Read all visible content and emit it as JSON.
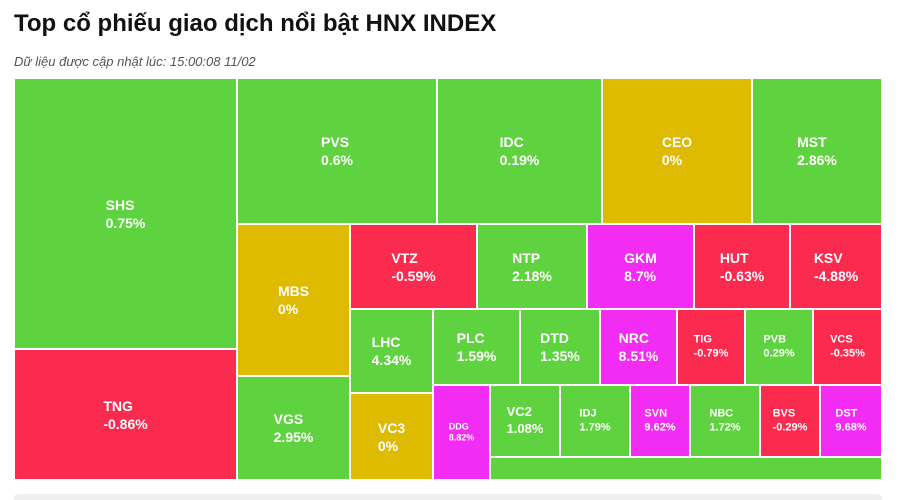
{
  "header": {
    "title": "Top cổ phiếu giao dịch nổi bật HNX INDEX",
    "updated_label": "Dữ liệu được cập nhật lúc:",
    "updated_time": "15:00:08 11/02"
  },
  "colors": {
    "up": "#5fd33f",
    "down": "#fa2b4f",
    "flat": "#deba00",
    "ceiling": "#f32cf3"
  },
  "chart_data": {
    "type": "treemap",
    "title": "Top cổ phiếu giao dịch nổi bật HNX INDEX",
    "items": [
      {
        "name": "SHS",
        "change": "0.75%",
        "status": "up"
      },
      {
        "name": "TNG",
        "change": "-0.86%",
        "status": "down"
      },
      {
        "name": "PVS",
        "change": "0.6%",
        "status": "up"
      },
      {
        "name": "IDC",
        "change": "0.19%",
        "status": "up"
      },
      {
        "name": "CEO",
        "change": "0%",
        "status": "flat"
      },
      {
        "name": "MST",
        "change": "2.86%",
        "status": "up"
      },
      {
        "name": "MBS",
        "change": "0%",
        "status": "flat"
      },
      {
        "name": "VGS",
        "change": "2.95%",
        "status": "up"
      },
      {
        "name": "VTZ",
        "change": "-0.59%",
        "status": "down"
      },
      {
        "name": "NTP",
        "change": "2.18%",
        "status": "up"
      },
      {
        "name": "GKM",
        "change": "8.7%",
        "status": "ceiling"
      },
      {
        "name": "HUT",
        "change": "-0.63%",
        "status": "down"
      },
      {
        "name": "KSV",
        "change": "-4.88%",
        "status": "down"
      },
      {
        "name": "LHC",
        "change": "4.34%",
        "status": "up"
      },
      {
        "name": "PLC",
        "change": "1.59%",
        "status": "up"
      },
      {
        "name": "DTD",
        "change": "1.35%",
        "status": "up"
      },
      {
        "name": "NRC",
        "change": "8.51%",
        "status": "ceiling"
      },
      {
        "name": "TIG",
        "change": "-0.79%",
        "status": "down"
      },
      {
        "name": "PVB",
        "change": "0.29%",
        "status": "up"
      },
      {
        "name": "VCS",
        "change": "-0.35%",
        "status": "down"
      },
      {
        "name": "VC3",
        "change": "0%",
        "status": "flat"
      },
      {
        "name": "DDG",
        "change": "8.82%",
        "status": "ceiling"
      },
      {
        "name": "VC2",
        "change": "1.08%",
        "status": "up"
      },
      {
        "name": "IDJ",
        "change": "1.79%",
        "status": "up"
      },
      {
        "name": "SVN",
        "change": "9.62%",
        "status": "ceiling"
      },
      {
        "name": "NBC",
        "change": "1.72%",
        "status": "up"
      },
      {
        "name": "BVS",
        "change": "-0.29%",
        "status": "down"
      },
      {
        "name": "DST",
        "change": "9.68%",
        "status": "ceiling"
      }
    ]
  }
}
